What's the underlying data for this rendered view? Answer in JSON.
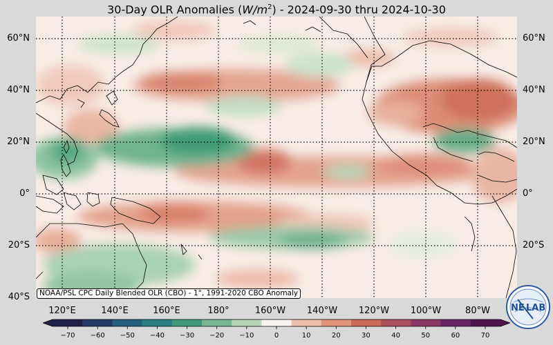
{
  "title": {
    "prefix": "30-Day OLR Anomalies (",
    "unit_base": "W/m",
    "unit_exp": "2",
    "suffix": ") - 2024-09-30 thru 2024-10-30"
  },
  "lat_labels": [
    "60°N",
    "40°N",
    "20°N",
    "0°",
    "20°S",
    "40°S"
  ],
  "lon_labels": [
    "120°E",
    "140°E",
    "160°E",
    "180°",
    "160°W",
    "140°W",
    "120°W",
    "100°W",
    "80°W"
  ],
  "source_label": "NOAA/PSL CPC Daily Blended OLR (CBO) - 1°, 1991-2020 CBO Anomaly",
  "colorbar": {
    "ticks": [
      "−70",
      "−60",
      "−50",
      "−40",
      "−30",
      "−20",
      "−10",
      "0",
      "10",
      "20",
      "30",
      "40",
      "50",
      "60",
      "70"
    ],
    "colors": [
      "#1e2048",
      "#233a6a",
      "#245f7c",
      "#2a7f80",
      "#3f9a7d",
      "#77b78f",
      "#b6d6b6",
      "#f7f3ef",
      "#ecc0ad",
      "#e09478",
      "#cb6a5a",
      "#ab4f5b",
      "#8c3866",
      "#6b2463",
      "#4e154c"
    ]
  },
  "logo": {
    "text_left": "NE",
    "text_right": "LAB",
    "icon": "noaa-psl-logo-icon"
  },
  "map": {
    "region": "Pacific Ocean, 40°S–68°N, 110°E–70°W",
    "colors": {
      "positive": "#d9826a",
      "negative": "#4c9e79",
      "neutral": "#f8ece6"
    }
  }
}
